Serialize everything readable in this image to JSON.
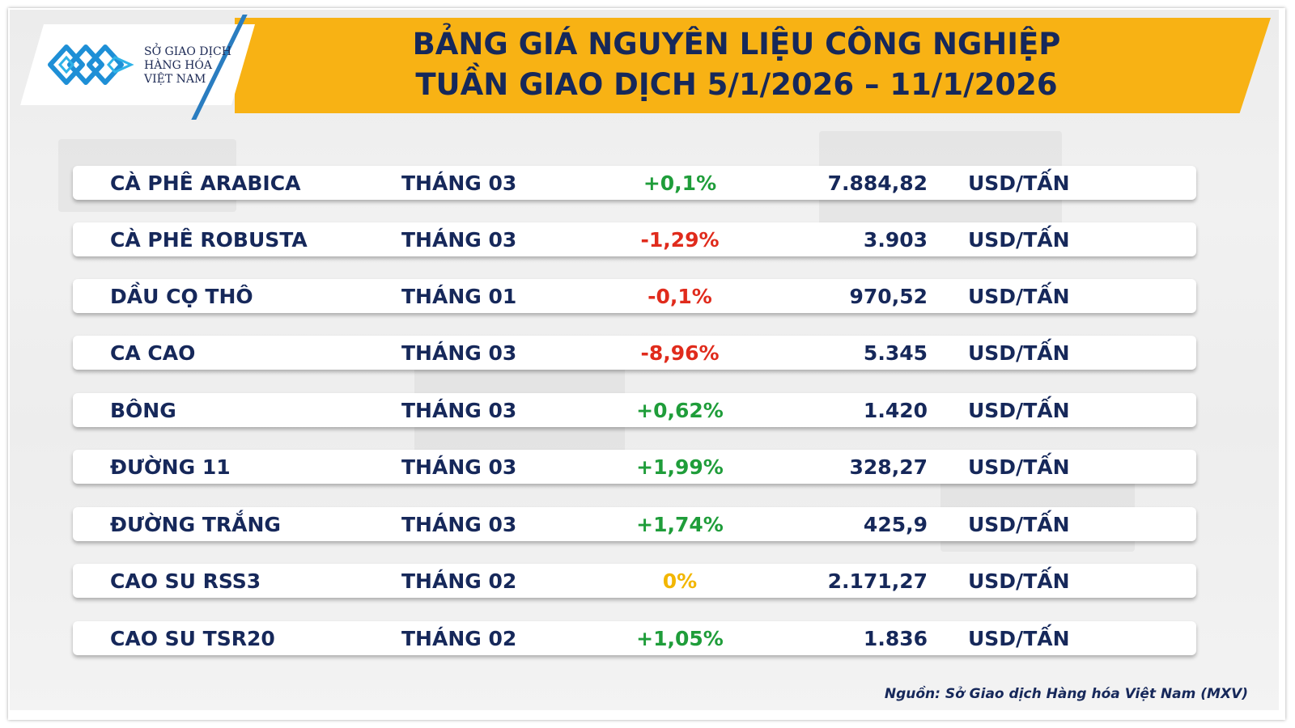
{
  "logo": {
    "name": "mxv-logo",
    "lines": [
      "SỞ GIAO DỊCH",
      "HÀNG HÓA",
      "VIỆT NAM"
    ]
  },
  "header": {
    "title_line1": "BẢNG GIÁ NGUYÊN LIỆU CÔNG NGHIỆP",
    "title_line2": "TUẦN GIAO DỊCH 5/1/2026 – 11/1/2026"
  },
  "colors": {
    "banner": "#f8b214",
    "text": "#16285a",
    "up": "#1f9d3a",
    "down": "#e02b1c",
    "flat": "#f2b600"
  },
  "rows": [
    {
      "name": "CÀ PHÊ ARABICA",
      "month": "THÁNG 03",
      "change": "+0,1%",
      "trend": "up",
      "price": "7.884,82",
      "unit": "USD/TẤN"
    },
    {
      "name": "CÀ PHÊ ROBUSTA",
      "month": "THÁNG 03",
      "change": "-1,29%",
      "trend": "down",
      "price": "3.903",
      "unit": "USD/TẤN"
    },
    {
      "name": "DẦU CỌ THÔ",
      "month": "THÁNG 01",
      "change": "-0,1%",
      "trend": "down",
      "price": "970,52",
      "unit": "USD/TẤN"
    },
    {
      "name": "CA CAO",
      "month": "THÁNG 03",
      "change": "-8,96%",
      "trend": "down",
      "price": "5.345",
      "unit": "USD/TẤN"
    },
    {
      "name": "BÔNG",
      "month": "THÁNG 03",
      "change": "+0,62%",
      "trend": "up",
      "price": "1.420",
      "unit": "USD/TẤN"
    },
    {
      "name": "ĐƯỜNG 11",
      "month": "THÁNG 03",
      "change": "+1,99%",
      "trend": "up",
      "price": "328,27",
      "unit": "USD/TẤN"
    },
    {
      "name": "ĐƯỜNG TRẮNG",
      "month": "THÁNG 03",
      "change": "+1,74%",
      "trend": "up",
      "price": "425,9",
      "unit": "USD/TẤN"
    },
    {
      "name": "CAO SU RSS3",
      "month": "THÁNG 02",
      "change": "0%",
      "trend": "flat",
      "price": "2.171,27",
      "unit": "USD/TẤN"
    },
    {
      "name": "CAO SU TSR20",
      "month": "THÁNG 02",
      "change": "+1,05%",
      "trend": "up",
      "price": "1.836",
      "unit": "USD/TẤN"
    }
  ],
  "source": "Nguồn: Sở Giao dịch Hàng hóa Việt Nam (MXV)"
}
